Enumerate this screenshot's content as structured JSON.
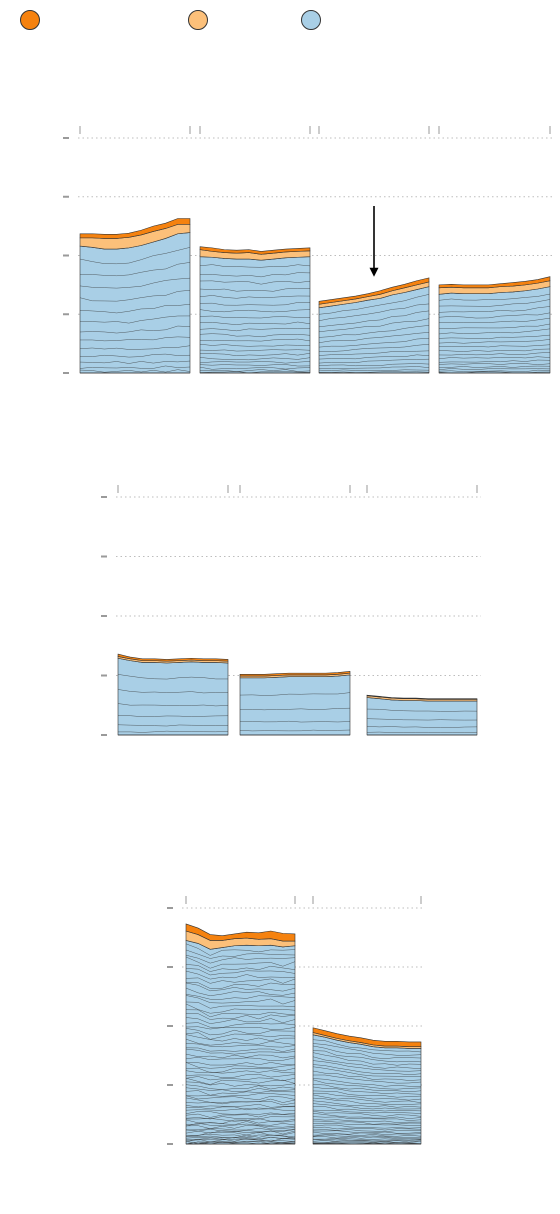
{
  "colors": {
    "dark_orange": "#f5820f",
    "light_orange": "#fcc07a",
    "blue": "#a9cfe6",
    "stroke": "#333333",
    "grid": "#bdbdbd",
    "tick": "#9a9a9a"
  },
  "legend": [
    {
      "name": "",
      "color": "#f5820f",
      "icon": "circle"
    },
    {
      "name": "",
      "color": "#fcc07a",
      "icon": "circle"
    },
    {
      "name": "",
      "color": "#a9cfe6",
      "icon": "circle"
    }
  ],
  "chart_data": [
    {
      "type": "area",
      "stacked": true,
      "title": "",
      "xlabel": "",
      "ylabel": "",
      "ylim": [
        0,
        4
      ],
      "yticks": [
        0,
        1,
        2,
        3,
        4
      ],
      "grid": true,
      "annotation": {
        "type": "arrow",
        "panel": 3
      },
      "panels": [
        {
          "bands": 14,
          "top": [
            2.37,
            2.37,
            2.36,
            2.36,
            2.38,
            2.43,
            2.5,
            2.55,
            2.63,
            2.63
          ],
          "dark": [
            0.07,
            0.07,
            0.07,
            0.07,
            0.07,
            0.08,
            0.09,
            0.09,
            0.1,
            0.1
          ],
          "light": [
            0.14,
            0.16,
            0.18,
            0.18,
            0.18,
            0.18,
            0.18,
            0.17,
            0.16,
            0.14
          ]
        },
        {
          "bands": 22,
          "top": [
            2.15,
            2.13,
            2.1,
            2.09,
            2.1,
            2.07,
            2.09,
            2.11,
            2.12,
            2.13
          ],
          "dark": [
            0.05,
            0.06,
            0.05,
            0.05,
            0.05,
            0.05,
            0.05,
            0.05,
            0.05,
            0.05
          ],
          "light": [
            0.12,
            0.1,
            0.1,
            0.1,
            0.11,
            0.1,
            0.1,
            0.1,
            0.1,
            0.1
          ]
        },
        {
          "bands": 16,
          "top": [
            1.22,
            1.25,
            1.28,
            1.31,
            1.35,
            1.4,
            1.46,
            1.51,
            1.57,
            1.62
          ],
          "dark": [
            0.05,
            0.05,
            0.05,
            0.05,
            0.05,
            0.06,
            0.06,
            0.06,
            0.07,
            0.07
          ],
          "light": [
            0.06,
            0.06,
            0.06,
            0.06,
            0.06,
            0.07,
            0.07,
            0.08,
            0.08,
            0.08
          ]
        },
        {
          "bands": 20,
          "top": [
            1.5,
            1.51,
            1.5,
            1.5,
            1.5,
            1.52,
            1.54,
            1.56,
            1.59,
            1.64
          ],
          "dark": [
            0.05,
            0.05,
            0.05,
            0.05,
            0.05,
            0.05,
            0.06,
            0.06,
            0.06,
            0.07
          ],
          "light": [
            0.11,
            0.1,
            0.1,
            0.1,
            0.1,
            0.1,
            0.1,
            0.1,
            0.1,
            0.1
          ]
        }
      ]
    },
    {
      "type": "area",
      "stacked": true,
      "title": "",
      "xlabel": "",
      "ylabel": "",
      "ylim": [
        0,
        4
      ],
      "yticks": [
        0,
        1,
        2,
        3,
        4
      ],
      "grid": true,
      "panels": [
        {
          "bands": 7,
          "top": [
            1.36,
            1.31,
            1.28,
            1.28,
            1.27,
            1.28,
            1.29,
            1.28,
            1.28,
            1.27
          ],
          "dark": [
            0.04,
            0.03,
            0.03,
            0.03,
            0.03,
            0.03,
            0.03,
            0.03,
            0.03,
            0.03
          ],
          "light": [
            0.03,
            0.03,
            0.03,
            0.03,
            0.03,
            0.03,
            0.03,
            0.03,
            0.03,
            0.03
          ]
        },
        {
          "bands": 5,
          "top": [
            1.02,
            1.02,
            1.02,
            1.03,
            1.04,
            1.04,
            1.04,
            1.04,
            1.05,
            1.07
          ],
          "dark": [
            0.03,
            0.03,
            0.03,
            0.03,
            0.03,
            0.03,
            0.03,
            0.03,
            0.03,
            0.03
          ],
          "light": [
            0.03,
            0.03,
            0.03,
            0.03,
            0.03,
            0.03,
            0.03,
            0.03,
            0.03,
            0.03
          ]
        },
        {
          "bands": 5,
          "top": [
            0.67,
            0.65,
            0.63,
            0.62,
            0.62,
            0.61,
            0.61,
            0.61,
            0.61,
            0.61
          ],
          "dark": [
            0.01,
            0.01,
            0.01,
            0.01,
            0.01,
            0.01,
            0.01,
            0.01,
            0.01,
            0.01
          ],
          "light": [
            0.03,
            0.03,
            0.03,
            0.03,
            0.03,
            0.03,
            0.03,
            0.03,
            0.03,
            0.03
          ]
        }
      ]
    },
    {
      "type": "area",
      "stacked": true,
      "title": "",
      "xlabel": "",
      "ylabel": "",
      "ylim": [
        0,
        4
      ],
      "yticks": [
        0,
        1,
        2,
        3,
        4
      ],
      "grid": true,
      "panels": [
        {
          "bands": 70,
          "top": [
            3.73,
            3.66,
            3.55,
            3.53,
            3.56,
            3.59,
            3.58,
            3.61,
            3.57,
            3.56
          ],
          "dark": [
            0.12,
            0.11,
            0.1,
            0.08,
            0.08,
            0.1,
            0.11,
            0.13,
            0.13,
            0.12
          ],
          "light": [
            0.16,
            0.15,
            0.15,
            0.12,
            0.12,
            0.12,
            0.11,
            0.11,
            0.1,
            0.08
          ]
        },
        {
          "bands": 45,
          "top": [
            1.97,
            1.92,
            1.87,
            1.83,
            1.8,
            1.76,
            1.74,
            1.74,
            1.73,
            1.73
          ],
          "dark": [
            0.08,
            0.08,
            0.08,
            0.08,
            0.08,
            0.08,
            0.08,
            0.08,
            0.08,
            0.08
          ],
          "light": [
            0.04,
            0.03,
            0.03,
            0.03,
            0.03,
            0.03,
            0.03,
            0.03,
            0.03,
            0.03
          ]
        }
      ]
    }
  ]
}
